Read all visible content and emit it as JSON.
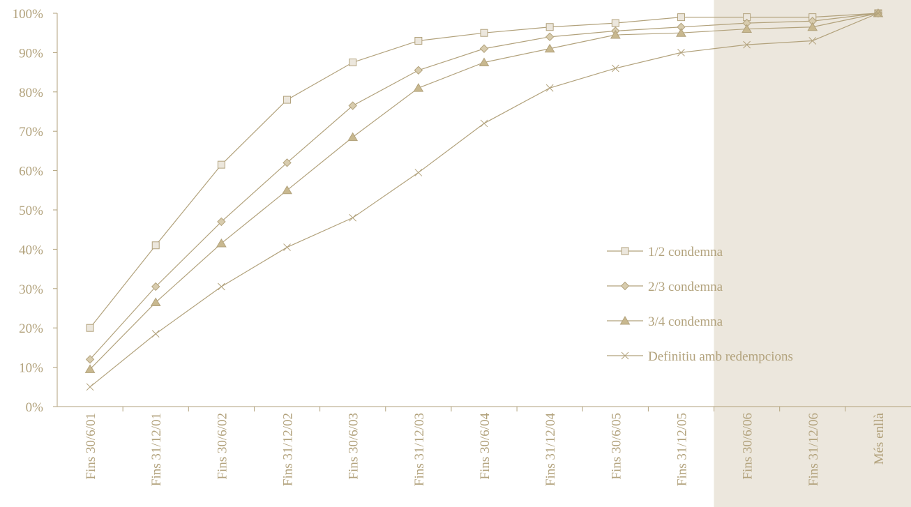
{
  "chart_data": {
    "type": "line",
    "categories": [
      "Fins 30/6/01",
      "Fins 31/12/01",
      "Fins 30/6/02",
      "Fins 31/12/02",
      "Fins 30/6/03",
      "Fins 31/12/03",
      "Fins 30/6/04",
      "Fins 31/12/04",
      "Fins 30/6/05",
      "Fins 31/12/05",
      "Fins 30/6/06",
      "Fins 31/12/06",
      "Més enllà"
    ],
    "yticks": [
      "0%",
      "10%",
      "20%",
      "30%",
      "40%",
      "50%",
      "60%",
      "70%",
      "80%",
      "90%",
      "100%"
    ],
    "ylim": [
      0,
      100
    ],
    "grid": false,
    "legend_position": "right",
    "highlight_region": {
      "from_category": "Fins 30/6/06",
      "to_category": "Més enllà",
      "color": "#ece7dd"
    },
    "line_color": "#b2a27c",
    "series": [
      {
        "name": "1/2 condemna",
        "marker": "square",
        "values": [
          20,
          41,
          61.5,
          78,
          87.5,
          93,
          95,
          96.5,
          97.5,
          99,
          99,
          99,
          100
        ]
      },
      {
        "name": "2/3 condemna",
        "marker": "diamond",
        "values": [
          12,
          30.5,
          47,
          62,
          76.5,
          85.5,
          91,
          94,
          95.5,
          96.5,
          97.5,
          98,
          100
        ]
      },
      {
        "name": "3/4 condemna",
        "marker": "triangle",
        "values": [
          9.5,
          26.5,
          41.5,
          55,
          68.5,
          81,
          87.5,
          91,
          94.5,
          95,
          96,
          96.5,
          100
        ]
      },
      {
        "name": "Definitiu amb redempcions",
        "marker": "x",
        "values": [
          5,
          18.5,
          30.5,
          40.5,
          48,
          59.5,
          72,
          81,
          86,
          90,
          92,
          93,
          100
        ]
      }
    ]
  }
}
